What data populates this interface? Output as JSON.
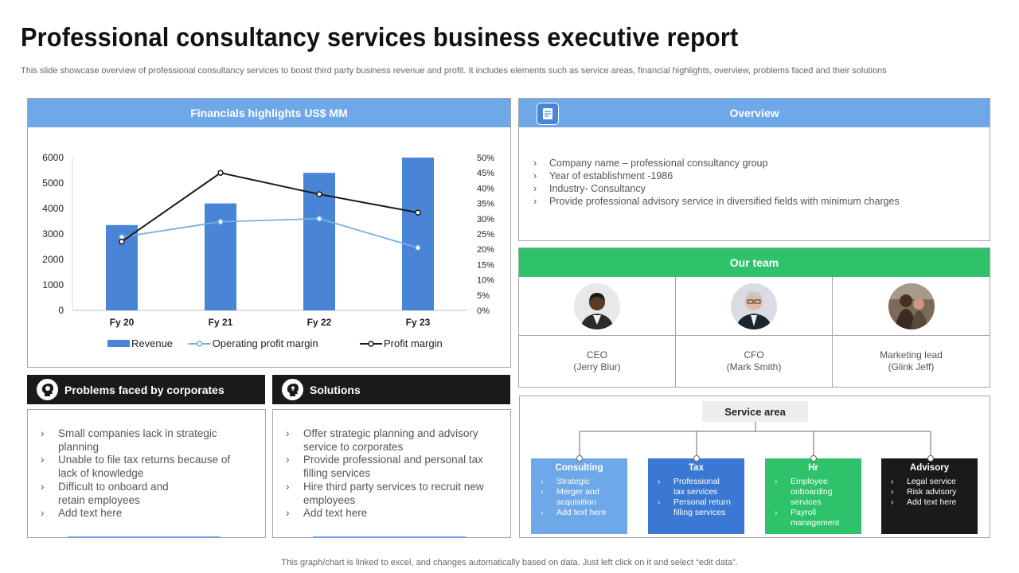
{
  "title": "Professional consultancy services business executive report",
  "subtitle": "This slide showcase overview of professional consultancy services to boost third party business revenue and profit. It includes elements such as service areas, financial highlights, overview, problems faced and their solutions",
  "financials": {
    "heading": "Financials highlights US$ MM"
  },
  "chart_data": {
    "type": "bar",
    "categories": [
      "Fy 20",
      "Fy 21",
      "Fy 22",
      "Fy 23"
    ],
    "series": [
      {
        "name": "Revenue",
        "type": "bar",
        "axis": "left",
        "values": [
          3350,
          4200,
          5400,
          6000
        ],
        "color": "#4a84d6"
      },
      {
        "name": "Operating profit margin",
        "type": "line",
        "axis": "right",
        "values": [
          24,
          29,
          30,
          20.5
        ],
        "color": "#74b0e8"
      },
      {
        "name": "Profit margin",
        "type": "line",
        "axis": "right",
        "values": [
          22.5,
          45,
          38,
          32
        ],
        "color": "#1a1a1a"
      }
    ],
    "y_left_ticks": [
      "0",
      "1000",
      "2000",
      "3000",
      "4000",
      "5000",
      "6000"
    ],
    "ylim_left": [
      0,
      6000
    ],
    "y_right_ticks": [
      "0%",
      "5%",
      "10%",
      "15%",
      "20%",
      "25%",
      "30%",
      "35%",
      "40%",
      "45%",
      "50%"
    ],
    "ylim_right": [
      0,
      50
    ],
    "legend_position": "bottom",
    "grid": false
  },
  "overview": {
    "heading": "Overview",
    "icon": "document-icon",
    "items": [
      "Company name – professional  consultancy group",
      "Year of establishment -1986",
      "Industry- Consultancy",
      "Provide  professional  advisory  service  in diversified  fields  with minimum charges"
    ]
  },
  "team": {
    "heading": "Our team",
    "members": [
      {
        "role": "CEO",
        "name": "(Jerry Blur)"
      },
      {
        "role": "CFO",
        "name": "(Mark Smith)"
      },
      {
        "role": "Marketing lead",
        "name": "(Glink Jeff)"
      }
    ]
  },
  "problems": {
    "heading": "Problems faced by corporates",
    "icon": "brain-head-icon",
    "items": [
      "Small companies lack in strategic planning",
      "Unable to file tax returns because of lack of knowledge",
      "Difficult to onboard and retain employees",
      "Add text here"
    ]
  },
  "solutions": {
    "heading": "Solutions",
    "icon": "solution-head-icon",
    "items": [
      "Offer strategic planning and advisory service to corporates",
      "Provide professional and personal tax filling services",
      "Hire third party services to recruit new employees",
      "Add text here"
    ]
  },
  "service_area": {
    "heading": "Service area",
    "areas": [
      {
        "title": "Consulting",
        "color": "#6fa8e8",
        "items": [
          "Strategic",
          "Merger and acquisition",
          "Add text here"
        ]
      },
      {
        "title": "Tax",
        "color": "#3a78d3",
        "items": [
          "Professional tax services",
          "Personal return filling services"
        ]
      },
      {
        "title": "Hr",
        "color": "#2ec36a",
        "items": [
          "Employee onboarding services",
          "Payroll management"
        ]
      },
      {
        "title": "Advisory",
        "color": "#1a1a1a",
        "items": [
          "Legal service",
          "Risk advisory",
          "Add text here"
        ]
      }
    ]
  },
  "footer": "This graph/chart is linked to excel,  and changes automatically based on data. Just left click on it and select “edit data”.",
  "colors": {
    "blue_header": "#6fa8e8",
    "green_header": "#2ec36a",
    "dark_header": "#1a1a1a",
    "bar": "#4a84d6"
  }
}
